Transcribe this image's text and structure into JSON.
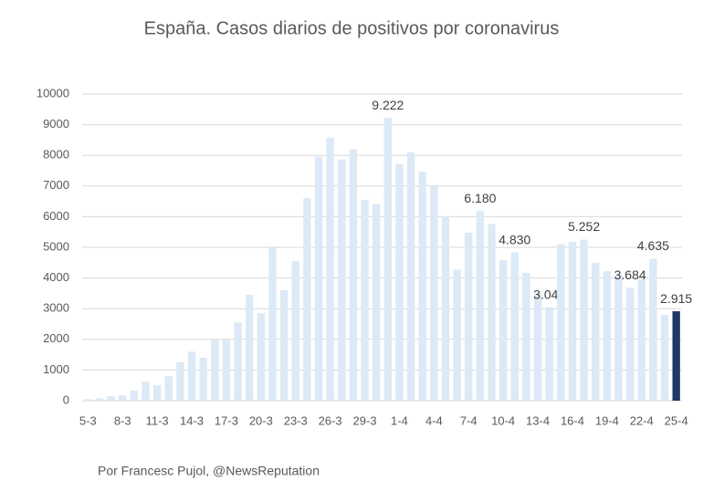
{
  "chart_data": {
    "type": "bar",
    "title": "España. Casos diarios de positivos por coronavirus",
    "footer": "Por Francesc Pujol, @NewsReputation",
    "categories": [
      "5-3",
      null,
      null,
      "8-3",
      null,
      null,
      "11-3",
      null,
      null,
      "14-3",
      null,
      null,
      "17-3",
      null,
      null,
      "20-3",
      null,
      null,
      "23-3",
      null,
      null,
      "26-3",
      null,
      null,
      "29-3",
      null,
      null,
      "1-4",
      null,
      null,
      "4-4",
      null,
      null,
      "7-4",
      null,
      null,
      "10-4",
      null,
      null,
      "13-4",
      null,
      null,
      "16-4",
      null,
      null,
      "19-4",
      null,
      null,
      "22-4",
      null,
      null,
      "25-4"
    ],
    "values": [
      50,
      80,
      150,
      180,
      330,
      620,
      500,
      800,
      1250,
      1600,
      1400,
      2000,
      2000,
      2550,
      3450,
      2850,
      5000,
      3600,
      4550,
      6600,
      7950,
      8580,
      7870,
      8200,
      6550,
      6400,
      9222,
      7720,
      8100,
      7470,
      7030,
      6020,
      4270,
      5480,
      6180,
      5760,
      4580,
      4830,
      4170,
      3480,
      3045,
      5100,
      5180,
      5252,
      4500,
      4220,
      4100,
      3684,
      3960,
      4635,
      2800,
      2915
    ],
    "value_labels": [
      null,
      null,
      null,
      null,
      null,
      null,
      null,
      null,
      null,
      null,
      null,
      null,
      null,
      null,
      null,
      null,
      null,
      null,
      null,
      null,
      null,
      null,
      null,
      null,
      null,
      null,
      "9.222",
      null,
      null,
      null,
      null,
      null,
      null,
      null,
      "6.180",
      null,
      null,
      "4.830",
      null,
      null,
      "3.045",
      null,
      null,
      "5.252",
      null,
      null,
      null,
      "3.684",
      null,
      "4.635",
      null,
      "2.915"
    ],
    "colors": [
      "#dce9f6",
      "#dce9f6",
      "#dce9f6",
      "#dce9f6",
      "#dce9f6",
      "#dce9f6",
      "#dce9f6",
      "#dce9f6",
      "#dce9f6",
      "#dce9f6",
      "#dce9f6",
      "#dce9f6",
      "#dce9f6",
      "#dce9f6",
      "#dce9f6",
      "#dce9f6",
      "#dce9f6",
      "#dce9f6",
      "#dce9f6",
      "#dce9f6",
      "#dce9f6",
      "#dce9f6",
      "#dce9f6",
      "#dce9f6",
      "#dce9f6",
      "#dce9f6",
      "#dce9f6",
      "#dce9f6",
      "#dce9f6",
      "#dce9f6",
      "#dce9f6",
      "#dce9f6",
      "#dce9f6",
      "#dce9f6",
      "#dce9f6",
      "#dce9f6",
      "#dce9f6",
      "#dce9f6",
      "#dce9f6",
      "#dce9f6",
      "#dce9f6",
      "#dce9f6",
      "#dce9f6",
      "#dce9f6",
      "#dce9f6",
      "#dce9f6",
      "#dce9f6",
      "#dce9f6",
      "#dce9f6",
      "#dce9f6",
      "#dce9f6",
      "#1f3864"
    ],
    "ylim": [
      0,
      10000
    ],
    "yticks": [
      0,
      1000,
      2000,
      3000,
      4000,
      5000,
      6000,
      7000,
      8000,
      9000,
      10000
    ],
    "grid": true
  }
}
